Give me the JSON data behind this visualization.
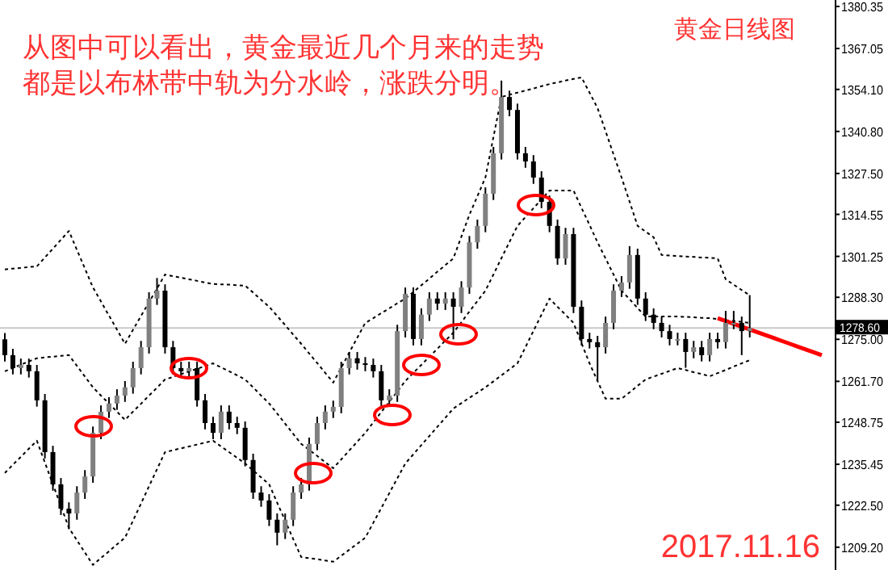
{
  "chart_data": {
    "type": "candlestick",
    "title": "黄金日线图",
    "annotations": [
      "从图中可以看出，黄金最近几个月来的走势都是以布林带中轨为分水岭，涨跌分明。",
      "2017.11.16"
    ],
    "categories": [
      null,
      null,
      null,
      null,
      null,
      null,
      null,
      null,
      null,
      null,
      null,
      null,
      null,
      null,
      null,
      null,
      null,
      null,
      null,
      null,
      null,
      null,
      null,
      null,
      null,
      null,
      null,
      null,
      null,
      null,
      null,
      null,
      null,
      null,
      null,
      null,
      null,
      null,
      null,
      null,
      null,
      null,
      null,
      null,
      null,
      null,
      null,
      null,
      null,
      null,
      null,
      null,
      null,
      null,
      null,
      null,
      null,
      null,
      null,
      null,
      null,
      null,
      null,
      null,
      null,
      null,
      null,
      null,
      null,
      null,
      null,
      null,
      null,
      null,
      null,
      null,
      null,
      null,
      null,
      null,
      null,
      null,
      null,
      null,
      null,
      null,
      null,
      null,
      null,
      null,
      null,
      null,
      null,
      null,
      null,
      null,
      null,
      null,
      null,
      null,
      null,
      null,
      null
    ],
    "ohlc": [
      [
        1275.0,
        1277.0,
        1268.0,
        1270.0
      ],
      [
        1270.0,
        1272.0,
        1263.9,
        1265.9
      ],
      [
        1265.9,
        1268.9,
        1263.9,
        1266.9
      ],
      [
        1266.9,
        1268.9,
        1262.9,
        1264.9
      ],
      [
        1264.9,
        1266.9,
        1253.7,
        1255.7
      ],
      [
        1255.7,
        1257.7,
        1237.3,
        1239.3
      ],
      [
        1239.3,
        1241.3,
        1227.1,
        1229.1
      ],
      [
        1229.1,
        1231.1,
        1219.4,
        1221.4
      ],
      [
        1221.4,
        1223.4,
        1214.9,
        1219.9
      ],
      [
        1219.9,
        1228.5,
        1217.9,
        1226.5
      ],
      [
        1226.5,
        1233.6,
        1224.5,
        1231.6
      ],
      [
        1231.6,
        1247.4,
        1229.6,
        1245.4
      ],
      [
        1245.4,
        1254.1,
        1243.4,
        1252.1
      ],
      [
        1252.1,
        1256.7,
        1250.1,
        1254.7
      ],
      [
        1254.7,
        1259.2,
        1252.7,
        1257.2
      ],
      [
        1257.2,
        1261.8,
        1255.2,
        1259.8
      ],
      [
        1259.8,
        1267.9,
        1257.8,
        1265.9
      ],
      [
        1265.9,
        1274.5,
        1263.9,
        1272.5
      ],
      [
        1272.5,
        1289.9,
        1270.5,
        1287.9
      ],
      [
        1287.9,
        1294.4,
        1285.9,
        1290.4
      ],
      [
        1290.4,
        1292.4,
        1270.5,
        1272.5
      ],
      [
        1272.5,
        1274.5,
        1263.9,
        1265.9
      ],
      [
        1265.9,
        1267.9,
        1262.9,
        1264.9
      ],
      [
        1264.9,
        1267.9,
        1262.9,
        1265.9
      ],
      [
        1265.9,
        1267.9,
        1253.7,
        1255.7
      ],
      [
        1255.7,
        1257.7,
        1246.5,
        1248.5
      ],
      [
        1248.5,
        1250.5,
        1243.4,
        1245.4
      ],
      [
        1245.4,
        1254.1,
        1243.4,
        1252.1
      ],
      [
        1252.1,
        1254.1,
        1246.5,
        1248.5
      ],
      [
        1248.5,
        1250.5,
        1245.0,
        1247.0
      ],
      [
        1247.0,
        1249.0,
        1234.8,
        1236.8
      ],
      [
        1236.8,
        1238.8,
        1224.5,
        1226.5
      ],
      [
        1226.5,
        1228.5,
        1222.0,
        1224.0
      ],
      [
        1224.0,
        1226.0,
        1215.9,
        1217.9
      ],
      [
        1217.9,
        1219.9,
        1209.8,
        1213.8
      ],
      [
        1213.8,
        1219.9,
        1211.8,
        1217.9
      ],
      [
        1217.9,
        1228.5,
        1215.9,
        1226.5
      ],
      [
        1226.5,
        1231.1,
        1224.5,
        1229.1
      ],
      [
        1229.1,
        1243.9,
        1227.1,
        1241.9
      ],
      [
        1241.9,
        1250.5,
        1239.9,
        1248.5
      ],
      [
        1248.5,
        1254.1,
        1246.5,
        1252.1
      ],
      [
        1252.1,
        1255.6,
        1250.1,
        1253.6
      ],
      [
        1253.6,
        1267.9,
        1251.6,
        1265.9
      ],
      [
        1265.9,
        1271.0,
        1263.9,
        1269.0
      ],
      [
        1269.0,
        1271.0,
        1265.4,
        1267.4
      ],
      [
        1267.4,
        1269.4,
        1264.9,
        1266.9
      ],
      [
        1266.9,
        1268.9,
        1262.9,
        1264.9
      ],
      [
        1264.9,
        1266.9,
        1253.7,
        1255.7
      ],
      [
        1255.7,
        1259.2,
        1253.7,
        1257.2
      ],
      [
        1257.2,
        1279.6,
        1255.2,
        1277.6
      ],
      [
        1277.6,
        1291.4,
        1275.6,
        1289.4
      ],
      [
        1289.4,
        1291.4,
        1273.1,
        1275.1
      ],
      [
        1275.1,
        1284.8,
        1273.1,
        1282.8
      ],
      [
        1282.8,
        1289.9,
        1280.8,
        1287.9
      ],
      [
        1287.9,
        1289.9,
        1284.3,
        1286.3
      ],
      [
        1286.3,
        1289.9,
        1284.3,
        1287.9
      ],
      [
        1287.9,
        1289.9,
        1275.0,
        1285.3
      ],
      [
        1285.3,
        1293.4,
        1283.3,
        1291.4
      ],
      [
        1291.4,
        1307.7,
        1289.4,
        1305.7
      ],
      [
        1305.7,
        1312.9,
        1303.7,
        1310.9
      ],
      [
        1310.9,
        1323.1,
        1308.9,
        1321.1
      ],
      [
        1321.1,
        1335.9,
        1319.1,
        1333.9
      ],
      [
        1333.9,
        1356.9,
        1331.9,
        1351.7
      ],
      [
        1351.7,
        1353.7,
        1345.6,
        1347.6
      ],
      [
        1347.6,
        1349.6,
        1331.9,
        1333.9
      ],
      [
        1333.9,
        1335.9,
        1329.3,
        1331.3
      ],
      [
        1331.3,
        1333.3,
        1324.2,
        1326.2
      ],
      [
        1326.2,
        1328.2,
        1316.5,
        1318.5
      ],
      [
        1318.5,
        1320.5,
        1308.9,
        1310.9
      ],
      [
        1310.9,
        1312.9,
        1298.6,
        1300.6
      ],
      [
        1300.6,
        1310.3,
        1298.6,
        1308.3
      ],
      [
        1308.3,
        1310.3,
        1283.3,
        1285.3
      ],
      [
        1285.3,
        1287.3,
        1273.1,
        1275.1
      ],
      [
        1275.1,
        1277.1,
        1272.1,
        1274.1
      ],
      [
        1274.1,
        1276.1,
        1262.0,
        1272.5
      ],
      [
        1272.5,
        1282.2,
        1270.5,
        1280.2
      ],
      [
        1280.2,
        1292.4,
        1278.2,
        1290.4
      ],
      [
        1290.4,
        1295.0,
        1288.4,
        1293.0
      ],
      [
        1293.0,
        1304.5,
        1291.0,
        1301.7
      ],
      [
        1301.7,
        1303.7,
        1285.9,
        1287.9
      ],
      [
        1287.9,
        1289.9,
        1280.8,
        1282.8
      ],
      [
        1282.8,
        1284.8,
        1278.2,
        1280.2
      ],
      [
        1280.2,
        1282.2,
        1275.6,
        1277.6
      ],
      [
        1277.6,
        1279.6,
        1273.1,
        1275.1
      ],
      [
        1275.1,
        1277.1,
        1273.1,
        1275.1
      ],
      [
        1275.1,
        1277.1,
        1266.0,
        1271.0
      ],
      [
        1271.0,
        1274.5,
        1269.0,
        1272.5
      ],
      [
        1272.5,
        1274.5,
        1268.0,
        1270.0
      ],
      [
        1270.0,
        1277.1,
        1268.0,
        1275.1
      ],
      [
        1275.1,
        1277.1,
        1272.1,
        1274.1
      ],
      [
        1274.1,
        1284.0,
        1272.1,
        1280.2
      ],
      [
        1280.2,
        1284.0,
        1278.2,
        1280.2
      ],
      [
        1280.2,
        1282.2,
        1270.0,
        1277.6
      ],
      [
        1277.6,
        1289.0,
        1275.6,
        1278.6
      ],
      null,
      null,
      null,
      null,
      null,
      null,
      null,
      null,
      null
    ],
    "series": [
      {
        "type": "line",
        "line_style": "dotted",
        "color": "#000000",
        "values": [
          1297.1,
          1297.4,
          1297.6,
          1297.9,
          1298.1,
          1300.9,
          1303.7,
          1306.5,
          1309.3,
          1303.3,
          1297.4,
          1291.4,
          1287.0,
          1282.5,
          1278.1,
          1273.6,
          1278.0,
          1282.4,
          1286.7,
          1291.1,
          1295.5,
          1295.0,
          1294.5,
          1294.0,
          1293.5,
          1293.0,
          1292.5,
          1292.4,
          1292.3,
          1292.1,
          1292.0,
          1289.8,
          1287.5,
          1285.3,
          1282.4,
          1279.5,
          1276.5,
          1273.6,
          1270.5,
          1267.5,
          1264.4,
          1261.3,
          1266.0,
          1270.8,
          1275.5,
          1280.2,
          1281.7,
          1283.3,
          1284.8,
          1286.4,
          1287.9,
          1290.0,
          1292.1,
          1294.2,
          1296.4,
          1298.5,
          1300.6,
          1307.5,
          1314.4,
          1320.3,
          1326.2,
          1339.0,
          1351.7,
          1352.4,
          1353.1,
          1353.7,
          1354.4,
          1355.1,
          1355.8,
          1356.3,
          1356.9,
          1357.4,
          1357.9,
          1353.1,
          1348.2,
          1340.9,
          1333.5,
          1326.2,
          1318.6,
          1310.9,
          1309.1,
          1307.3,
          1301.7,
          1301.5,
          1301.4,
          1301.2,
          1301.1,
          1300.9,
          1300.8,
          1300.6,
          1294.0,
          1292.3,
          1290.6,
          1288.9,
          null,
          null,
          null,
          null,
          null,
          null,
          null,
          null,
          null
        ]
      },
      {
        "type": "line",
        "line_style": "dotted",
        "color": "#000000",
        "values": [
          1264.9,
          1265.9,
          1267.0,
          1268.0,
          1269.0,
          1269.3,
          1269.5,
          1269.8,
          1270.0,
          1266.6,
          1263.2,
          1259.8,
          1257.2,
          1254.7,
          1252.1,
          1249.5,
          1252.1,
          1254.6,
          1257.2,
          1259.7,
          1262.3,
          1263.1,
          1264.0,
          1264.8,
          1265.7,
          1266.5,
          1267.4,
          1266.1,
          1264.9,
          1263.6,
          1262.3,
          1259.8,
          1257.2,
          1254.7,
          1251.5,
          1248.3,
          1245.1,
          1241.9,
          1240.0,
          1238.1,
          1236.1,
          1234.2,
          1237.0,
          1239.8,
          1242.6,
          1245.4,
          1248.7,
          1252.0,
          1255.2,
          1258.5,
          1261.8,
          1264.4,
          1266.9,
          1269.5,
          1272.0,
          1274.6,
          1277.1,
          1280.4,
          1283.8,
          1287.1,
          1290.4,
          1295.5,
          1300.7,
          1305.8,
          1310.9,
          1313.7,
          1316.5,
          1319.3,
          1322.1,
          1322.1,
          1322.1,
          1322.1,
          1316.6,
          1311.2,
          1305.7,
          1300.6,
          1295.5,
          1290.4,
          1287.7,
          1284.9,
          1282.2,
          1282.2,
          1282.2,
          1282.2,
          1282.2,
          1282.1,
          1282.0,
          1281.8,
          1281.7,
          1281.4,
          1281.1,
          1280.8,
          1280.5,
          1280.2,
          null,
          null,
          null,
          null,
          null,
          null,
          null,
          null,
          null
        ]
      },
      {
        "type": "line",
        "line_style": "dotted",
        "color": "#000000",
        "values": [
          1232.7,
          1235.3,
          1237.8,
          1240.4,
          1242.9,
          1236.0,
          1229.1,
          1222.2,
          1215.3,
          1211.4,
          1207.5,
          1203.6,
          1205.8,
          1207.9,
          1210.1,
          1212.2,
          1217.6,
          1223.0,
          1228.5,
          1233.9,
          1239.3,
          1239.9,
          1240.5,
          1241.1,
          1241.7,
          1242.3,
          1242.9,
          1241.1,
          1239.3,
          1237.5,
          1235.7,
          1233.5,
          1231.3,
          1229.1,
          1223.3,
          1217.6,
          1211.8,
          1206.1,
          1205.7,
          1205.4,
          1205.0,
          1204.6,
          1206.5,
          1208.4,
          1210.3,
          1212.2,
          1216.9,
          1221.6,
          1226.3,
          1231.0,
          1235.7,
          1238.6,
          1241.5,
          1244.4,
          1247.3,
          1250.2,
          1253.1,
          1254.8,
          1256.5,
          1258.1,
          1259.8,
          1261.7,
          1263.6,
          1265.5,
          1267.4,
          1272.5,
          1277.7,
          1282.8,
          1287.9,
          1285.3,
          1282.8,
          1280.2,
          1273.8,
          1267.4,
          1261.8,
          1256.2,
          1256.2,
          1256.2,
          1258.2,
          1260.3,
          1262.3,
          1263.2,
          1264.1,
          1265.0,
          1265.9,
          1265.3,
          1264.6,
          1264.0,
          1263.3,
          1264.3,
          1265.3,
          1266.4,
          1267.4,
          1268.4,
          null,
          null,
          null,
          null,
          null,
          null,
          null,
          null,
          null
        ]
      },
      {
        "type": "line",
        "line_style": "solid",
        "color": "#ff0000",
        "values": [
          null,
          null,
          null,
          null,
          null,
          null,
          null,
          null,
          null,
          null,
          null,
          null,
          null,
          null,
          null,
          null,
          null,
          null,
          null,
          null,
          null,
          null,
          null,
          null,
          null,
          null,
          null,
          null,
          null,
          null,
          null,
          null,
          null,
          null,
          null,
          null,
          null,
          null,
          null,
          null,
          null,
          null,
          null,
          null,
          null,
          null,
          null,
          null,
          null,
          null,
          null,
          null,
          null,
          null,
          null,
          null,
          null,
          null,
          null,
          null,
          null,
          null,
          null,
          null,
          null,
          null,
          null,
          null,
          null,
          null,
          null,
          null,
          null,
          null,
          null,
          null,
          null,
          null,
          null,
          null,
          null,
          null,
          null,
          null,
          null,
          null,
          null,
          null,
          null,
          1281.7,
          1280.8,
          1279.9,
          1279.0,
          1278.1,
          1277.2,
          1276.3,
          1275.4,
          1274.5,
          1273.6,
          1272.7,
          1271.8,
          1270.9,
          1270.0
        ]
      }
    ],
    "ylim": [
      1202.5,
      1382.4
    ],
    "yticks": [
      {
        "value": 1380.35,
        "label": "1380.35"
      },
      {
        "value": 1367.05,
        "label": "1367.05"
      },
      {
        "value": 1354.1,
        "label": "1354.10"
      },
      {
        "value": 1340.8,
        "label": "1340.80"
      },
      {
        "value": 1327.5,
        "label": "1327.50"
      },
      {
        "value": 1314.55,
        "label": "1314.55"
      },
      {
        "value": 1301.25,
        "label": "1301.25"
      },
      {
        "value": 1288.3,
        "label": "1288.30"
      },
      {
        "value": 1275.0,
        "label": "1275.00"
      },
      {
        "value": 1261.7,
        "label": "1261.70"
      },
      {
        "value": 1248.75,
        "label": "1248.75"
      },
      {
        "value": 1235.45,
        "label": "1235.45"
      },
      {
        "value": 1222.5,
        "label": "1222.50"
      },
      {
        "value": 1209.2,
        "label": "1209.20"
      }
    ],
    "ref_lines": [
      {
        "axis": "y",
        "value": 1278.6,
        "label": "1278.60",
        "color": "#c8c8c8"
      }
    ],
    "tick_labels": "y"
  }
}
